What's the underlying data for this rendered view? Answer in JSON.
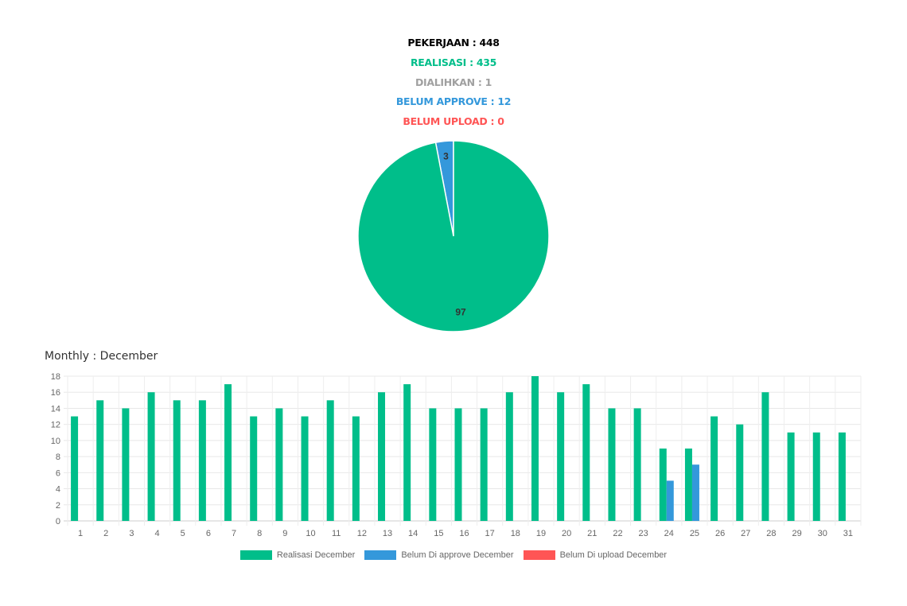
{
  "summary": {
    "pekerjaan": "PEKERJAAN : 448",
    "realisasi": "REALISASI : 435",
    "dialihkan": "DIALIHKAN : 1",
    "belum_approve": "BELUM APPROVE : 12",
    "belum_upload": "BELUM UPLOAD : 0"
  },
  "monthly_title": "Monthly : December",
  "colors": {
    "realisasi": "#00be8a",
    "belum_approve": "#3498db",
    "belum_upload": "#ff5555",
    "dialihkan": "#a0a0a0",
    "pekerjaan": "#000000"
  },
  "chart_data": [
    {
      "type": "pie",
      "labels": [
        "97",
        "3"
      ],
      "values": [
        97,
        3
      ],
      "colors": [
        "#00be8a",
        "#3498db"
      ]
    },
    {
      "type": "bar",
      "title": "Monthly : December",
      "categories": [
        "1",
        "2",
        "3",
        "4",
        "5",
        "6",
        "7",
        "8",
        "9",
        "10",
        "11",
        "12",
        "13",
        "14",
        "15",
        "16",
        "17",
        "18",
        "19",
        "20",
        "21",
        "22",
        "23",
        "24",
        "25",
        "26",
        "27",
        "28",
        "29",
        "30",
        "31"
      ],
      "series": [
        {
          "name": "Realisasi December",
          "color": "#00be8a",
          "values": [
            13,
            15,
            14,
            16,
            15,
            15,
            17,
            13,
            14,
            13,
            15,
            13,
            16,
            17,
            14,
            14,
            14,
            16,
            18,
            16,
            17,
            14,
            14,
            9,
            9,
            13,
            12,
            16,
            11,
            11,
            11
          ]
        },
        {
          "name": "Belum Di approve December",
          "color": "#3498db",
          "values": [
            0,
            0,
            0,
            0,
            0,
            0,
            0,
            0,
            0,
            0,
            0,
            0,
            0,
            0,
            0,
            0,
            0,
            0,
            0,
            0,
            0,
            0,
            0,
            5,
            7,
            0,
            0,
            0,
            0,
            0,
            0
          ]
        },
        {
          "name": "Belum Di upload December",
          "color": "#ff5555",
          "values": [
            0,
            0,
            0,
            0,
            0,
            0,
            0,
            0,
            0,
            0,
            0,
            0,
            0,
            0,
            0,
            0,
            0,
            0,
            0,
            0,
            0,
            0,
            0,
            0,
            0,
            0,
            0,
            0,
            0,
            0,
            0
          ]
        }
      ],
      "ylim": [
        0,
        18
      ],
      "yticks": [
        0,
        2,
        4,
        6,
        8,
        10,
        12,
        14,
        16,
        18
      ],
      "grid": true,
      "legend_position": "bottom"
    }
  ]
}
